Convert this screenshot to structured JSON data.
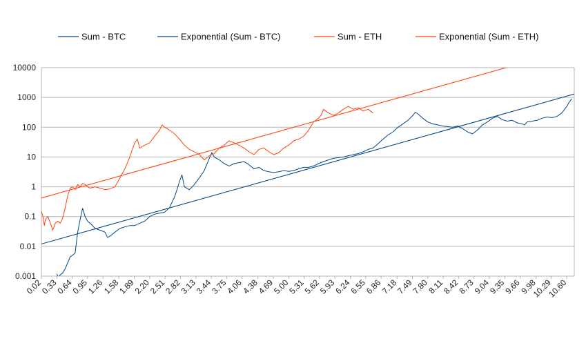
{
  "chart_data": {
    "type": "line",
    "title": "",
    "xlabel": "",
    "ylabel": "",
    "y_scale": "log",
    "ylim": [
      0.001,
      10000
    ],
    "y_ticks": [
      "0.001",
      "0.01",
      "0.1",
      "1",
      "10",
      "100",
      "1000",
      "10000"
    ],
    "x_ticks": [
      "0.02",
      "0.33",
      "0.64",
      "0.95",
      "1.26",
      "1.58",
      "1.89",
      "2.20",
      "2.51",
      "2.82",
      "3.13",
      "3.44",
      "3.75",
      "4.06",
      "4.38",
      "4.69",
      "5.00",
      "5.31",
      "5.62",
      "5.93",
      "6.24",
      "6.55",
      "6.86",
      "7.18",
      "7.49",
      "7.80",
      "8.11",
      "8.42",
      "8.73",
      "9.04",
      "9.35",
      "9.66",
      "9.98",
      "10.29",
      "10.60"
    ],
    "xlim": [
      0.02,
      10.75
    ],
    "grid": "horizontal",
    "legend_position": "top",
    "series": [
      {
        "name": "Sum - BTC",
        "color": "#004586",
        "kind": "data",
        "x": [
          0.33,
          0.36,
          0.4,
          0.45,
          0.5,
          0.55,
          0.6,
          0.65,
          0.7,
          0.75,
          0.8,
          0.85,
          0.9,
          0.95,
          1.0,
          1.05,
          1.1,
          1.2,
          1.3,
          1.35,
          1.4,
          1.5,
          1.6,
          1.7,
          1.8,
          1.9,
          2.0,
          2.1,
          2.2,
          2.3,
          2.4,
          2.5,
          2.6,
          2.7,
          2.75,
          2.8,
          2.85,
          2.9,
          3.0,
          3.1,
          3.2,
          3.3,
          3.4,
          3.45,
          3.5,
          3.6,
          3.7,
          3.8,
          3.9,
          4.0,
          4.1,
          4.2,
          4.3,
          4.4,
          4.5,
          4.6,
          4.7,
          4.8,
          4.9,
          5.0,
          5.1,
          5.2,
          5.3,
          5.4,
          5.5,
          5.6,
          5.7,
          5.8,
          5.9,
          6.0,
          6.1,
          6.2,
          6.3,
          6.4,
          6.5,
          6.6,
          6.7,
          6.8,
          6.9,
          7.0,
          7.1,
          7.2,
          7.3,
          7.4,
          7.5,
          7.55,
          7.6,
          7.7,
          7.8,
          7.9,
          8.0,
          8.1,
          8.2,
          8.3,
          8.4,
          8.5,
          8.6,
          8.7,
          8.8,
          8.9,
          9.0,
          9.1,
          9.2,
          9.3,
          9.4,
          9.5,
          9.6,
          9.7,
          9.75,
          9.8,
          9.9,
          10.0,
          10.1,
          10.2,
          10.3,
          10.4,
          10.5,
          10.6,
          10.65,
          10.7
        ],
        "y": [
          0.0012,
          0.0009,
          0.0011,
          0.0013,
          0.0018,
          0.0028,
          0.0045,
          0.005,
          0.006,
          0.03,
          0.08,
          0.19,
          0.1,
          0.07,
          0.06,
          0.05,
          0.04,
          0.035,
          0.03,
          0.02,
          0.022,
          0.03,
          0.04,
          0.045,
          0.05,
          0.05,
          0.06,
          0.07,
          0.1,
          0.12,
          0.13,
          0.14,
          0.2,
          0.45,
          0.8,
          1.5,
          2.5,
          1.0,
          0.8,
          1.2,
          2.0,
          3.5,
          9.0,
          14.0,
          10.0,
          8.0,
          6.0,
          5.0,
          6.0,
          6.5,
          7.0,
          5.5,
          4.0,
          4.5,
          3.5,
          3.2,
          3.0,
          3.2,
          3.5,
          3.3,
          3.5,
          4.0,
          4.5,
          4.5,
          5.0,
          6.0,
          7.0,
          8.0,
          9.0,
          9.5,
          10.0,
          11.0,
          12.0,
          13.0,
          15.0,
          18.0,
          20.0,
          28.0,
          40.0,
          55.0,
          70.0,
          100.0,
          130.0,
          170.0,
          250.0,
          320.0,
          280.0,
          200.0,
          150.0,
          130.0,
          120.0,
          110.0,
          105.0,
          100.0,
          110.0,
          90.0,
          70.0,
          60.0,
          80.0,
          120.0,
          150.0,
          200.0,
          230.0,
          180.0,
          160.0,
          170.0,
          140.0,
          130.0,
          120.0,
          150.0,
          160.0,
          170.0,
          200.0,
          220.0,
          210.0,
          230.0,
          300.0,
          500.0,
          700.0,
          900.0
        ]
      },
      {
        "name": "Exponential (Sum - BTC)",
        "color": "#004586",
        "kind": "trend",
        "x": [
          0.02,
          10.75
        ],
        "y": [
          0.012,
          1300.0
        ]
      },
      {
        "name": "Sum - ETH",
        "color": "#ff420e",
        "kind": "data",
        "x": [
          0.02,
          0.05,
          0.08,
          0.1,
          0.15,
          0.2,
          0.25,
          0.3,
          0.35,
          0.4,
          0.45,
          0.5,
          0.55,
          0.6,
          0.65,
          0.7,
          0.75,
          0.8,
          0.85,
          0.9,
          0.95,
          1.0,
          1.1,
          1.2,
          1.3,
          1.4,
          1.5,
          1.6,
          1.7,
          1.8,
          1.85,
          1.9,
          1.95,
          2.0,
          2.1,
          2.2,
          2.3,
          2.4,
          2.45,
          2.5,
          2.55,
          2.6,
          2.7,
          2.8,
          2.9,
          3.0,
          3.1,
          3.2,
          3.3,
          3.4,
          3.5,
          3.6,
          3.7,
          3.8,
          3.9,
          4.0,
          4.1,
          4.2,
          4.3,
          4.4,
          4.5,
          4.6,
          4.7,
          4.8,
          4.9,
          5.0,
          5.1,
          5.2,
          5.3,
          5.4,
          5.5,
          5.6,
          5.65,
          5.7,
          5.8,
          5.9,
          6.0,
          6.1,
          6.2,
          6.3,
          6.4,
          6.5,
          6.6,
          6.7
        ],
        "y": [
          0.15,
          0.1,
          0.05,
          0.08,
          0.1,
          0.06,
          0.035,
          0.06,
          0.07,
          0.06,
          0.09,
          0.2,
          0.5,
          0.9,
          1.0,
          0.8,
          1.2,
          1.0,
          1.3,
          1.2,
          1.0,
          0.9,
          1.0,
          0.9,
          0.8,
          0.85,
          1.0,
          2.0,
          4.0,
          10.0,
          18.0,
          30.0,
          40.0,
          20.0,
          25.0,
          30.0,
          50.0,
          80.0,
          120.0,
          100.0,
          90.0,
          80.0,
          60.0,
          40.0,
          25.0,
          18.0,
          15.0,
          12.0,
          8.0,
          11.0,
          13.0,
          20.0,
          25.0,
          35.0,
          30.0,
          25.0,
          20.0,
          15.0,
          12.0,
          18.0,
          20.0,
          15.0,
          12.0,
          14.0,
          20.0,
          25.0,
          35.0,
          40.0,
          50.0,
          80.0,
          150.0,
          200.0,
          250.0,
          400.0,
          300.0,
          250.0,
          300.0,
          400.0,
          500.0,
          400.0,
          450.0,
          350.0,
          400.0,
          300.0
        ]
      },
      {
        "name": "Exponential (Sum - ETH)",
        "color": "#ff420e",
        "kind": "trend",
        "x": [
          0.02,
          9.38
        ],
        "y": [
          0.42,
          10000.0
        ]
      }
    ]
  }
}
